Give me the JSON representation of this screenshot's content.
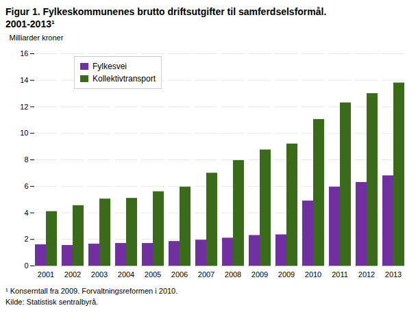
{
  "chart_data": {
    "type": "bar",
    "title": "Figur 1. Fylkeskommunenes brutto driftsutgifter til samferdselsformål.",
    "subtitle": "2001-2013¹",
    "ylabel": "Milliarder kroner",
    "annotations": [
      "¹ Konserntall fra 2009.   Forvaltningsreformen i 2010.",
      "Kilde: Statistisk sentralbyrå."
    ],
    "categories": [
      "2001",
      "2002",
      "2003",
      "2004",
      "2005",
      "2006",
      "2007",
      "2008",
      "2009",
      "2009",
      "2010",
      "2011",
      "2012",
      "2013"
    ],
    "series": [
      {
        "name": "Fylkesvei",
        "color": "#7030a0",
        "values": [
          1.6,
          1.55,
          1.65,
          1.7,
          1.7,
          1.85,
          1.95,
          2.1,
          2.3,
          2.35,
          4.9,
          5.95,
          6.3,
          6.8
        ]
      },
      {
        "name": "Kollektivtransport",
        "color": "#3a6b1a",
        "values": [
          4.1,
          4.55,
          5.05,
          5.1,
          5.6,
          5.95,
          7.0,
          7.95,
          8.75,
          9.2,
          11.05,
          12.3,
          13.0,
          13.8
        ]
      }
    ],
    "ylim": [
      0,
      16
    ],
    "yticks": [
      0,
      2,
      4,
      6,
      8,
      10,
      12,
      14,
      16
    ],
    "grid": true,
    "legend": "upper left"
  }
}
